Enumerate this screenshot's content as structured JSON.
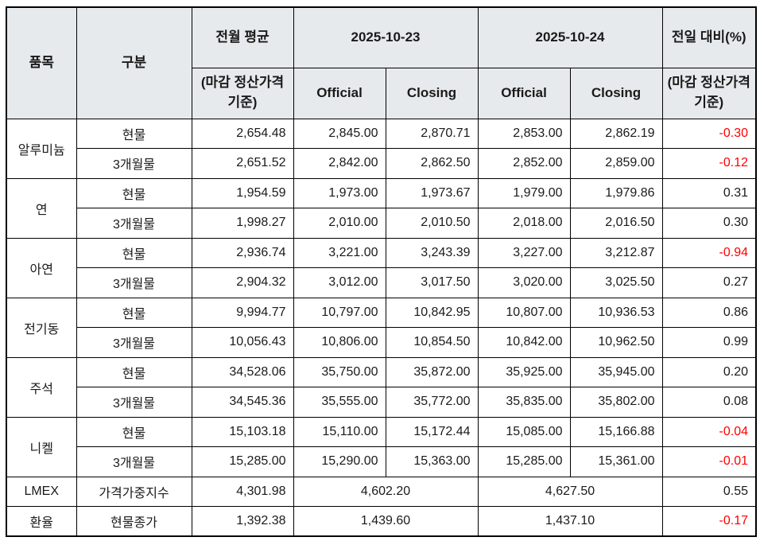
{
  "colors": {
    "header_bg": "#e7eaec",
    "negative_text": "#ff0000",
    "positive_text": "#1a1a1a",
    "border": "#000000",
    "page_bg": "#ffffff"
  },
  "table": {
    "header": {
      "col_item": "품목",
      "col_category": "구분",
      "col_prev_avg": "전월 평균",
      "col_prev_avg_sub": "(마감 정산가격 기준)",
      "col_date1": "2025-10-23",
      "col_date2": "2025-10-24",
      "col_official": "Official",
      "col_closing": "Closing",
      "col_change": "전일 대비(%)",
      "col_change_sub": "(마감 정산가격 기준)"
    },
    "groups": [
      {
        "item": "알루미늄",
        "rows": [
          {
            "category": "현물",
            "prev_avg": "2,654.48",
            "d1_official": "2,845.00",
            "d1_closing": "2,870.71",
            "d2_official": "2,853.00",
            "d2_closing": "2,862.19",
            "change": "-0.30"
          },
          {
            "category": "3개월물",
            "prev_avg": "2,651.52",
            "d1_official": "2,842.00",
            "d1_closing": "2,862.50",
            "d2_official": "2,852.00",
            "d2_closing": "2,859.00",
            "change": "-0.12"
          }
        ]
      },
      {
        "item": "연",
        "rows": [
          {
            "category": "현물",
            "prev_avg": "1,954.59",
            "d1_official": "1,973.00",
            "d1_closing": "1,973.67",
            "d2_official": "1,979.00",
            "d2_closing": "1,979.86",
            "change": "0.31"
          },
          {
            "category": "3개월물",
            "prev_avg": "1,998.27",
            "d1_official": "2,010.00",
            "d1_closing": "2,010.50",
            "d2_official": "2,018.00",
            "d2_closing": "2,016.50",
            "change": "0.30"
          }
        ]
      },
      {
        "item": "아연",
        "rows": [
          {
            "category": "현물",
            "prev_avg": "2,936.74",
            "d1_official": "3,221.00",
            "d1_closing": "3,243.39",
            "d2_official": "3,227.00",
            "d2_closing": "3,212.87",
            "change": "-0.94"
          },
          {
            "category": "3개월물",
            "prev_avg": "2,904.32",
            "d1_official": "3,012.00",
            "d1_closing": "3,017.50",
            "d2_official": "3,020.00",
            "d2_closing": "3,025.50",
            "change": "0.27"
          }
        ]
      },
      {
        "item": "전기동",
        "rows": [
          {
            "category": "현물",
            "prev_avg": "9,994.77",
            "d1_official": "10,797.00",
            "d1_closing": "10,842.95",
            "d2_official": "10,807.00",
            "d2_closing": "10,936.53",
            "change": "0.86"
          },
          {
            "category": "3개월물",
            "prev_avg": "10,056.43",
            "d1_official": "10,806.00",
            "d1_closing": "10,854.50",
            "d2_official": "10,842.00",
            "d2_closing": "10,962.50",
            "change": "0.99"
          }
        ]
      },
      {
        "item": "주석",
        "rows": [
          {
            "category": "현물",
            "prev_avg": "34,528.06",
            "d1_official": "35,750.00",
            "d1_closing": "35,872.00",
            "d2_official": "35,925.00",
            "d2_closing": "35,945.00",
            "change": "0.20"
          },
          {
            "category": "3개월물",
            "prev_avg": "34,545.36",
            "d1_official": "35,555.00",
            "d1_closing": "35,772.00",
            "d2_official": "35,835.00",
            "d2_closing": "35,802.00",
            "change": "0.08"
          }
        ]
      },
      {
        "item": "니켈",
        "rows": [
          {
            "category": "현물",
            "prev_avg": "15,103.18",
            "d1_official": "15,110.00",
            "d1_closing": "15,172.44",
            "d2_official": "15,085.00",
            "d2_closing": "15,166.88",
            "change": "-0.04"
          },
          {
            "category": "3개월물",
            "prev_avg": "15,285.00",
            "d1_official": "15,290.00",
            "d1_closing": "15,363.00",
            "d2_official": "15,285.00",
            "d2_closing": "15,361.00",
            "change": "-0.01"
          }
        ]
      }
    ],
    "summary_rows": [
      {
        "item": "LMEX",
        "category": "가격가중지수",
        "prev_avg": "4,301.98",
        "d1": "4,602.20",
        "d2": "4,627.50",
        "change": "0.55"
      },
      {
        "item": "환율",
        "category": "현물종가",
        "prev_avg": "1,392.38",
        "d1": "1,439.60",
        "d2": "1,437.10",
        "change": "-0.17"
      }
    ]
  }
}
